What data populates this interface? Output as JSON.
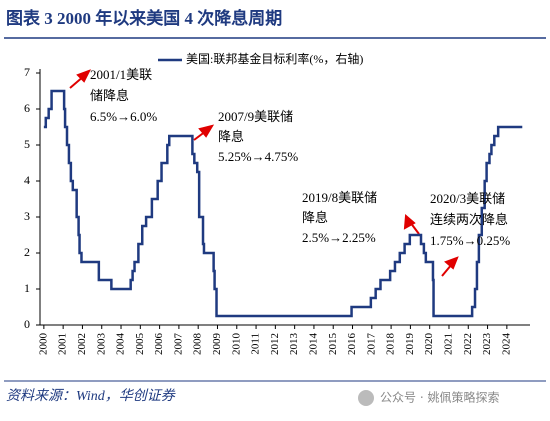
{
  "title": "图表 3   2000 年以来美国 4 次降息周期",
  "source": "资料来源：Wind，华创证券",
  "watermark": "公众号 · 姚佩策略探索",
  "chart_data": {
    "type": "line",
    "step": "after",
    "annotations": [
      [
        "2001/1美联",
        "储降息",
        "6.5%→6.0%"
      ],
      [
        "2007/9美联储",
        "降息",
        "5.25%→4.75%"
      ],
      [
        "2019/8美联储",
        "降息",
        "2.5%→2.25%"
      ],
      [
        "2020/3美联储",
        "连续两次降息",
        "1.75%→0.25%"
      ]
    ],
    "xlim": [
      1999.8,
      2025.2
    ],
    "xticks": [
      2000,
      2001,
      2002,
      2003,
      2004,
      2005,
      2006,
      2007,
      2008,
      2009,
      2010,
      2011,
      2012,
      2013,
      2014,
      2015,
      2016,
      2017,
      2018,
      2019,
      2020,
      2021,
      2022,
      2023,
      2024
    ],
    "ylim": [
      0,
      7
    ],
    "yticks": [
      0,
      1,
      2,
      3,
      4,
      5,
      6,
      7
    ],
    "legend": "top",
    "series": [
      {
        "name": "美国:联邦基金目标利率(%，右轴)",
        "color": "#1f3a80",
        "x": [
          2000.0,
          2000.1,
          2000.25,
          2000.4,
          2001.05,
          2001.1,
          2001.2,
          2001.3,
          2001.4,
          2001.5,
          2001.7,
          2001.8,
          2001.85,
          2001.95,
          2002.85,
          2003.5,
          2004.5,
          2004.6,
          2004.7,
          2004.9,
          2005.1,
          2005.3,
          2005.6,
          2005.9,
          2006.1,
          2006.4,
          2006.5,
          2007.7,
          2007.8,
          2007.95,
          2008.05,
          2008.25,
          2008.3,
          2008.8,
          2008.85,
          2008.95,
          2015.95,
          2016.95,
          2017.2,
          2017.45,
          2017.95,
          2018.2,
          2018.45,
          2018.7,
          2018.97,
          2019.55,
          2019.7,
          2019.8,
          2020.17,
          2020.2,
          2022.2,
          2022.35,
          2022.45,
          2022.55,
          2022.7,
          2022.85,
          2022.95,
          2023.1,
          2023.2,
          2023.35,
          2023.55,
          2024.8
        ],
        "values": [
          5.5,
          5.75,
          6.0,
          6.5,
          6.0,
          5.5,
          5.0,
          4.5,
          4.0,
          3.75,
          3.0,
          2.5,
          2.0,
          1.75,
          1.25,
          1.0,
          1.25,
          1.5,
          1.75,
          2.25,
          2.75,
          3.0,
          3.5,
          4.0,
          4.5,
          5.0,
          5.25,
          4.75,
          4.5,
          4.25,
          3.0,
          2.25,
          2.0,
          1.5,
          1.0,
          0.25,
          0.5,
          0.75,
          1.0,
          1.25,
          1.5,
          1.75,
          2.0,
          2.25,
          2.5,
          2.25,
          2.0,
          1.75,
          1.25,
          0.25,
          0.5,
          1.0,
          1.75,
          2.5,
          3.25,
          4.0,
          4.5,
          4.75,
          5.0,
          5.25,
          5.5,
          5.5
        ]
      }
    ]
  }
}
